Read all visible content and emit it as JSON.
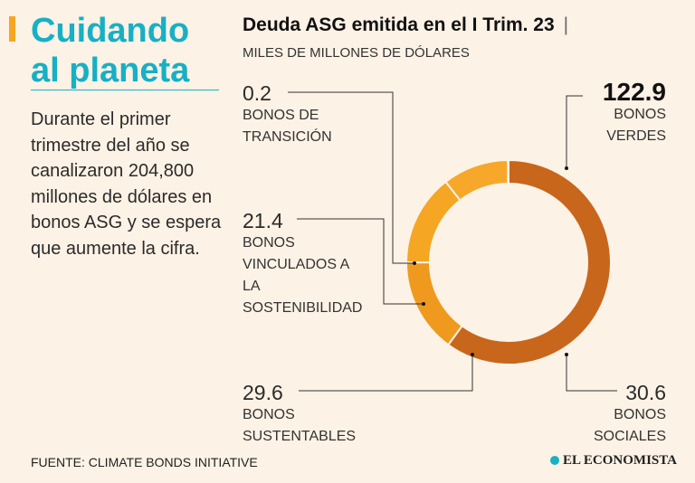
{
  "headline": {
    "line1": "Cuidando",
    "line2": "al planeta"
  },
  "intro_text": "Durante el primer trimestre del año se canalizaron 204,800 millones de dólares en bonos ASG y se espera que aumente la cifra.",
  "chart_title": "Deuda ASG emitida en el I Trim. 23",
  "chart_title_separator": "|",
  "subtitle": "MILES DE MILLONES DE DÓLARES",
  "source": "FUENTE: CLIMATE BONDS INITIATIVE",
  "brand": "EL ECONOMISTA",
  "colors": {
    "accent": "#f5a623",
    "title": "#17b0c4",
    "background": "#fdf2e6"
  },
  "chart_data": {
    "type": "pie",
    "title": "Deuda ASG emitida en el I Trim. 23",
    "unit": "Miles de millones de dólares",
    "slices": [
      {
        "label": "BONOS VERDES",
        "value": 122.9,
        "value_text": "122.9",
        "color": "#c8661c"
      },
      {
        "label": "BONOS SOCIALES",
        "value": 30.6,
        "value_text": "30.6",
        "color": "#ef9a1e"
      },
      {
        "label": "BONOS SUSTENTABLES",
        "value": 29.6,
        "value_text": "29.6",
        "color": "#f5a623"
      },
      {
        "label": "BONOS VINCULADOS A LA SOSTENIBILIDAD",
        "value": 21.4,
        "value_text": "21.4",
        "color": "#f7a82a"
      },
      {
        "label": "BONOS DE TRANSICIÓN",
        "value": 0.2,
        "value_text": "0.2",
        "color": "#d8741c"
      }
    ]
  }
}
